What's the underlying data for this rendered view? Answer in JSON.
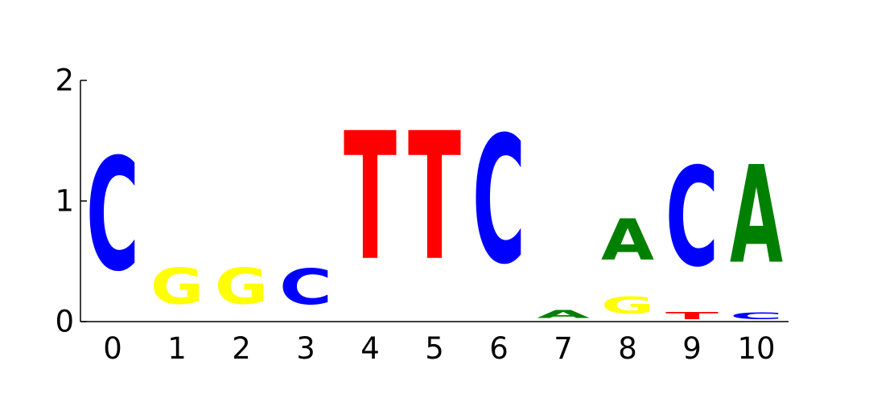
{
  "chart_data": {
    "type": "sequence-logo",
    "title": "",
    "xlabel": "",
    "ylabel": "",
    "ylim": [
      0,
      2
    ],
    "yticks": [
      "0",
      "1",
      "2"
    ],
    "positions": [
      "0",
      "1",
      "2",
      "3",
      "4",
      "5",
      "6",
      "7",
      "8",
      "9",
      "10"
    ],
    "letter_colors": {
      "A": "#008000",
      "C": "#0000ff",
      "G": "#ffff00",
      "T": "#ff0000"
    },
    "stacks": [
      [
        {
          "letter": "C",
          "height": 1.5,
          "base": 0.13
        }
      ],
      [
        {
          "letter": "G",
          "height": 0.48,
          "base": 0.05
        }
      ],
      [
        {
          "letter": "G",
          "height": 0.48,
          "base": 0.05
        }
      ],
      [
        {
          "letter": "C",
          "height": 0.47,
          "base": 0.05
        }
      ],
      [
        {
          "letter": "T",
          "height": 1.7,
          "base": 0.18
        }
      ],
      [
        {
          "letter": "T",
          "height": 1.7,
          "base": 0.18
        }
      ],
      [
        {
          "letter": "C",
          "height": 1.7,
          "base": 0.15
        }
      ],
      [
        {
          "letter": "A",
          "height": 0.1,
          "base": 0.01
        }
      ],
      [
        {
          "letter": "G",
          "height": 0.22,
          "base": 0.02
        },
        {
          "letter": "A",
          "height": 0.55,
          "base": 0.4
        }
      ],
      [
        {
          "letter": "T",
          "height": 0.1,
          "base": 0.0
        },
        {
          "letter": "C",
          "height": 1.32,
          "base": 0.2
        }
      ],
      [
        {
          "letter": "C",
          "height": 0.09,
          "base": 0.0
        },
        {
          "letter": "A",
          "height": 1.3,
          "base": 0.23
        }
      ]
    ]
  }
}
